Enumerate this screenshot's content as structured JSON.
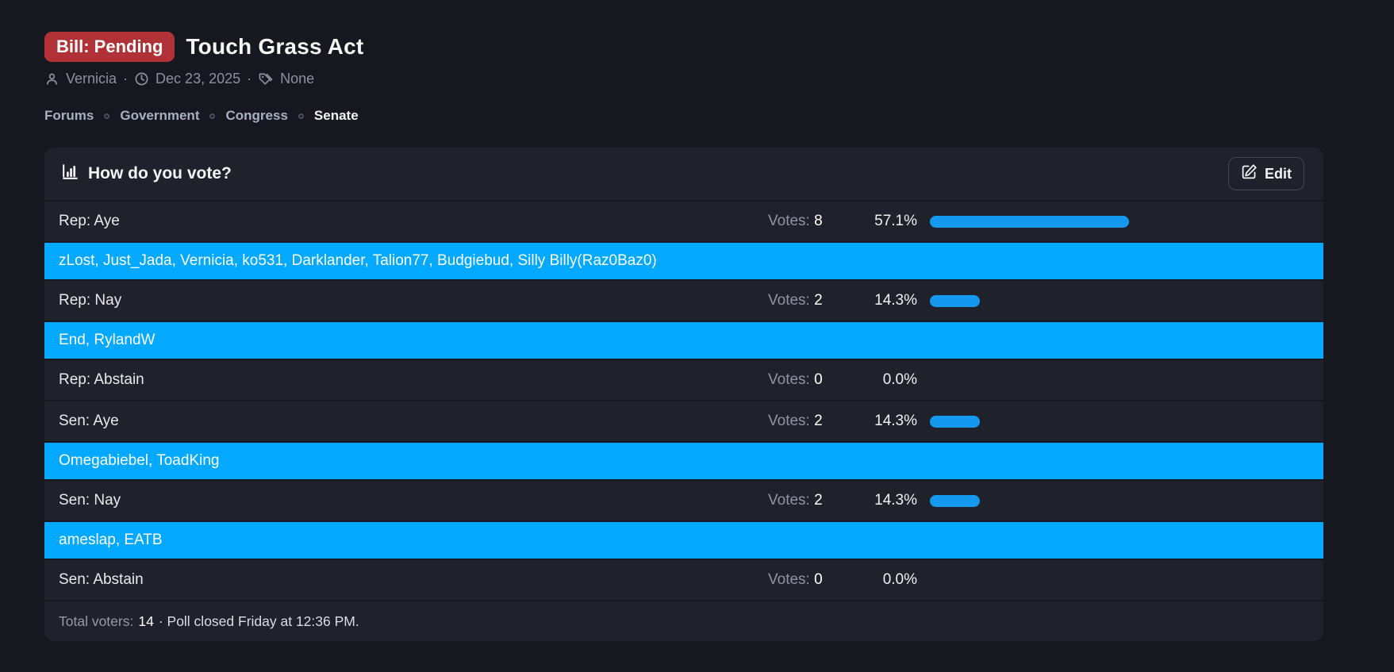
{
  "page": {
    "badge": "Bill: Pending",
    "title": "Touch Grass Act",
    "meta": {
      "author": "Vernicia",
      "dot1": "·",
      "date": "Dec 23, 2025",
      "dot2": "·",
      "tags": "None"
    },
    "breadcrumb": {
      "items": [
        {
          "label": "Forums"
        },
        {
          "label": "Government"
        },
        {
          "label": "Congress"
        },
        {
          "label": "Senate"
        }
      ]
    }
  },
  "poll": {
    "title": "How do you vote?",
    "edit_label": "Edit",
    "votes_label": "Votes:",
    "options": [
      {
        "label": "Rep: Aye",
        "votes": 8,
        "percent": "57.1%",
        "pct": 57.1,
        "voters": "zLost, Just_Jada, Vernicia, ko531, Darklander, Talion77, Budgiebud, Silly Billy(Raz0Baz0)"
      },
      {
        "label": "Rep: Nay",
        "votes": 2,
        "percent": "14.3%",
        "pct": 14.3,
        "voters": "End, RylandW"
      },
      {
        "label": "Rep: Abstain",
        "votes": 0,
        "percent": "0.0%",
        "pct": 0
      },
      {
        "label": "Sen: Aye",
        "votes": 2,
        "percent": "14.3%",
        "pct": 14.3,
        "voters": "Omegabiebel, ToadKing"
      },
      {
        "label": "Sen: Nay",
        "votes": 2,
        "percent": "14.3%",
        "pct": 14.3,
        "voters": "ameslap, EATB"
      },
      {
        "label": "Sen: Abstain",
        "votes": 0,
        "percent": "0.0%",
        "pct": 0
      }
    ],
    "footer": {
      "total_label": "Total voters:",
      "total_value": "14",
      "closed_text": "· Poll closed Friday at 12:36 PM."
    }
  },
  "colors": {
    "page_bg": "#16171f",
    "card_bg": "#1f212b",
    "badge_red": "#b13236",
    "voter_row_blue": "#03a9ff",
    "bar_blue": "#1499ee"
  }
}
